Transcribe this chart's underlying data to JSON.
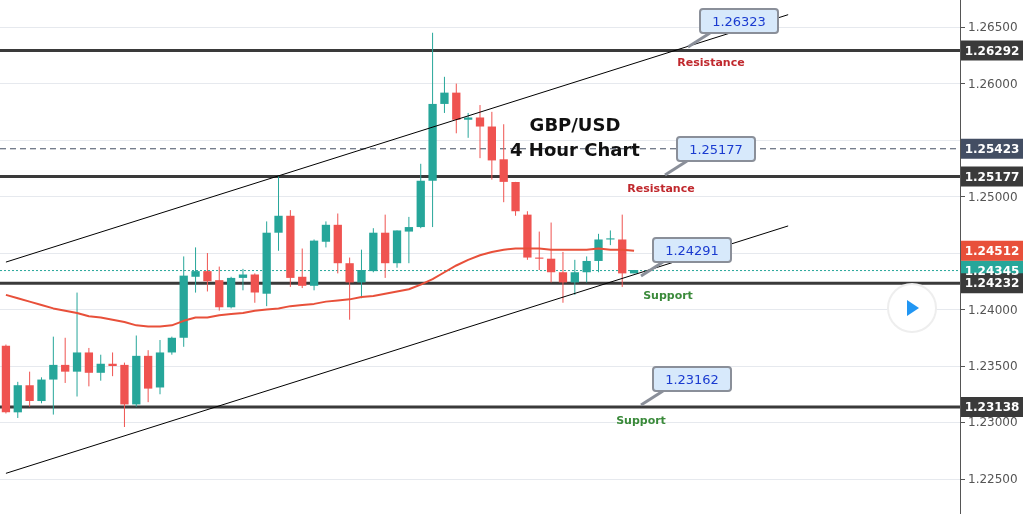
{
  "chart_data": {
    "type": "candlestick",
    "title": "GBP/USD",
    "subtitle": "4 Hour Chart",
    "categories": [
      null,
      null,
      null,
      null,
      null,
      null,
      null,
      null,
      null,
      null,
      null,
      null,
      null,
      null,
      null,
      null,
      null,
      null,
      null,
      null,
      null,
      null,
      null,
      null,
      null,
      null,
      null,
      null,
      null,
      null,
      null,
      null,
      null,
      null,
      null,
      null,
      null,
      null,
      null,
      null,
      null,
      null,
      null,
      null,
      null,
      null,
      null,
      null,
      null,
      null,
      null,
      null,
      null,
      null,
      null,
      null,
      null,
      null,
      null,
      null,
      null,
      null,
      null,
      null,
      null,
      null,
      null,
      null,
      null,
      null,
      null,
      null,
      null,
      null,
      null,
      null,
      null,
      null,
      null,
      null,
      null
    ],
    "ohlc": [
      [
        1.2368,
        1.2369,
        1.2308,
        1.2309
      ],
      [
        1.2309,
        1.2336,
        1.2304,
        1.2333
      ],
      [
        1.2333,
        1.2345,
        1.2314,
        1.2319
      ],
      [
        1.2319,
        1.234,
        1.2317,
        1.2338
      ],
      [
        1.2338,
        1.2376,
        1.2307,
        1.2351
      ],
      [
        1.2351,
        1.2375,
        1.2335,
        1.2345
      ],
      [
        1.2345,
        1.2415,
        1.2323,
        1.2362
      ],
      [
        1.2362,
        1.2366,
        1.2332,
        1.2344
      ],
      [
        1.2344,
        1.236,
        1.2337,
        1.2352
      ],
      [
        1.2352,
        1.2362,
        1.2341,
        1.235
      ],
      [
        1.2351,
        1.2353,
        1.2296,
        1.2316
      ],
      [
        1.2316,
        1.2377,
        1.2314,
        1.2359
      ],
      [
        1.2359,
        1.2364,
        1.2318,
        1.233
      ],
      [
        1.2331,
        1.2373,
        1.2325,
        1.2362
      ],
      [
        1.2362,
        1.2376,
        1.236,
        1.2375
      ],
      [
        1.2375,
        1.2447,
        1.2367,
        1.243
      ],
      [
        1.2429,
        1.2455,
        1.2415,
        1.2434
      ],
      [
        1.2434,
        1.245,
        1.2416,
        1.2425
      ],
      [
        1.2426,
        1.2438,
        1.2399,
        1.2402
      ],
      [
        1.2402,
        1.2429,
        1.2401,
        1.2428
      ],
      [
        1.2428,
        1.2436,
        1.2417,
        1.2431
      ],
      [
        1.2431,
        1.2432,
        1.2406,
        1.2415
      ],
      [
        1.2414,
        1.2478,
        1.2403,
        1.2468
      ],
      [
        1.2468,
        1.2518,
        1.2452,
        1.2483
      ],
      [
        1.2483,
        1.2488,
        1.242,
        1.2428
      ],
      [
        1.2429,
        1.2454,
        1.2419,
        1.2421
      ],
      [
        1.2421,
        1.2462,
        1.2417,
        1.2461
      ],
      [
        1.246,
        1.2478,
        1.2455,
        1.2475
      ],
      [
        1.2475,
        1.2485,
        1.2432,
        1.2441
      ],
      [
        1.2441,
        1.2446,
        1.2391,
        1.2424
      ],
      [
        1.2424,
        1.2453,
        1.241,
        1.2435
      ],
      [
        1.2434,
        1.2472,
        1.2433,
        1.2468
      ],
      [
        1.2468,
        1.2484,
        1.2428,
        1.2441
      ],
      [
        1.2441,
        1.247,
        1.2437,
        1.247
      ],
      [
        1.2469,
        1.2482,
        1.2441,
        1.2473
      ],
      [
        1.2473,
        1.2529,
        1.2472,
        1.2514
      ],
      [
        1.2514,
        1.2645,
        1.2473,
        1.2582
      ],
      [
        1.2582,
        1.2606,
        1.2574,
        1.2592
      ],
      [
        1.2592,
        1.26,
        1.2556,
        1.2568
      ],
      [
        1.2568,
        1.2574,
        1.2552,
        1.257
      ],
      [
        1.257,
        1.2581,
        1.2534,
        1.2562
      ],
      [
        1.2562,
        1.2575,
        1.2515,
        1.2532
      ],
      [
        1.2533,
        1.2564,
        1.2495,
        1.2513
      ],
      [
        1.2513,
        1.2513,
        1.2483,
        1.2487
      ],
      [
        1.2484,
        1.2487,
        1.2444,
        1.2446
      ],
      [
        1.2446,
        1.2469,
        1.2435,
        1.2445
      ],
      [
        1.2445,
        1.2477,
        1.2424,
        1.2433
      ],
      [
        1.2433,
        1.2451,
        1.2406,
        1.2424
      ],
      [
        1.2424,
        1.2444,
        1.2413,
        1.2433
      ],
      [
        1.2433,
        1.2447,
        1.2424,
        1.2443
      ],
      [
        1.2443,
        1.2467,
        1.2433,
        1.2462
      ],
      [
        1.2462,
        1.247,
        1.2457,
        1.2463
      ],
      [
        1.2462,
        1.2484,
        1.242,
        1.2432
      ],
      [
        1.2432,
        1.2435,
        1.2432,
        1.2435
      ],
      null,
      null,
      null,
      null,
      null,
      null,
      null,
      null,
      null,
      null,
      null,
      null,
      null,
      null,
      null,
      null,
      null,
      null,
      null,
      null,
      null,
      null,
      null,
      null,
      null,
      null,
      null
    ],
    "colors": [
      "#ef5350",
      "#26a69a",
      "#ef5350",
      "#26a69a",
      "#26a69a",
      "#ef5350",
      "#26a69a",
      "#ef5350",
      "#26a69a",
      "#ef5350",
      "#ef5350",
      "#26a69a",
      "#ef5350",
      "#26a69a",
      "#26a69a",
      "#26a69a",
      "#26a69a",
      "#ef5350",
      "#ef5350",
      "#26a69a",
      "#26a69a",
      "#ef5350",
      "#26a69a",
      "#26a69a",
      "#ef5350",
      "#ef5350",
      "#26a69a",
      "#26a69a",
      "#ef5350",
      "#ef5350",
      "#26a69a",
      "#26a69a",
      "#ef5350",
      "#26a69a",
      "#26a69a",
      "#26a69a",
      "#26a69a",
      "#26a69a",
      "#ef5350",
      "#26a69a",
      "#ef5350",
      "#ef5350",
      "#ef5350",
      "#ef5350",
      "#ef5350",
      "#ef5350",
      "#ef5350",
      "#ef5350",
      "#26a69a",
      "#26a69a",
      "#26a69a",
      "#26a69a",
      "#ef5350",
      "#26a69a",
      null,
      null,
      null,
      null,
      null,
      null,
      null,
      null,
      null,
      null,
      null,
      null,
      null,
      null,
      null,
      null,
      null,
      null,
      null,
      null,
      null,
      null,
      null,
      null,
      null,
      null,
      null
    ],
    "series": [
      {
        "type": "line",
        "color": "#e8503a",
        "values": [
          1.2413,
          1.241,
          1.2407,
          1.2404,
          1.2401,
          1.2399,
          1.2397,
          1.2394,
          1.2393,
          1.2391,
          1.2389,
          1.2386,
          1.2385,
          1.2385,
          1.2386,
          1.239,
          1.2393,
          1.2393,
          1.2395,
          1.2396,
          1.2397,
          1.2399,
          1.24,
          1.2401,
          1.2403,
          1.2404,
          1.2405,
          1.2407,
          1.2408,
          1.2409,
          1.2411,
          1.2412,
          1.2414,
          1.2416,
          1.2418,
          1.2422,
          1.2427,
          1.2433,
          1.2439,
          1.2444,
          1.2448,
          1.2451,
          1.2453,
          1.2454,
          1.2454,
          1.2454,
          1.2453,
          1.2453,
          1.2453,
          1.2453,
          1.2454,
          1.2453,
          1.2453,
          1.2452,
          null,
          null,
          null,
          null,
          null,
          null,
          null,
          null,
          null,
          null,
          null,
          null,
          null,
          null,
          null,
          null,
          null,
          null,
          null,
          null,
          null,
          null,
          null,
          null,
          null,
          null,
          null
        ]
      },
      {
        "type": "line",
        "color": "#000000",
        "values": [
          1.2442,
          null,
          null,
          null,
          null,
          null,
          null,
          null,
          null,
          null,
          null,
          null,
          null,
          null,
          null,
          null,
          null,
          null,
          null,
          null,
          null,
          null,
          null,
          null,
          null,
          null,
          null,
          null,
          null,
          null,
          null,
          null,
          null,
          null,
          null,
          null,
          null,
          null,
          null,
          null,
          null,
          null,
          null,
          null,
          null,
          null,
          null,
          null,
          null,
          null,
          null,
          null,
          null,
          null,
          null,
          null,
          null,
          null,
          null,
          null,
          null,
          null,
          null,
          null,
          null,
          null,
          1.2661,
          null,
          null,
          null,
          null,
          null,
          null,
          null,
          null,
          null,
          null,
          null,
          null,
          null,
          null
        ]
      },
      {
        "type": "line",
        "color": "#000000",
        "values": [
          1.2255,
          null,
          null,
          null,
          null,
          null,
          null,
          null,
          null,
          null,
          null,
          null,
          null,
          null,
          null,
          null,
          null,
          null,
          null,
          null,
          null,
          null,
          null,
          null,
          null,
          null,
          null,
          null,
          null,
          null,
          null,
          null,
          null,
          null,
          null,
          null,
          null,
          null,
          null,
          null,
          null,
          null,
          null,
          null,
          null,
          null,
          null,
          null,
          null,
          null,
          null,
          null,
          null,
          null,
          null,
          null,
          null,
          null,
          null,
          null,
          null,
          null,
          null,
          null,
          null,
          null,
          1.2474,
          null,
          null,
          null,
          null,
          null,
          null,
          null,
          null,
          null,
          null,
          null,
          null,
          null,
          null
        ]
      }
    ],
    "ylim": [
      1.2219,
      1.2674
    ],
    "yticks": [
      {
        "value": 1.225,
        "label": "1.22500"
      },
      {
        "value": 1.23,
        "label": "1.23000"
      },
      {
        "value": 1.235,
        "label": "1.23500"
      },
      {
        "value": 1.24,
        "label": "1.24000"
      },
      {
        "value": 1.245,
        "label": null
      },
      {
        "value": 1.25,
        "label": "1.25000"
      },
      {
        "value": 1.255,
        "label": null
      },
      {
        "value": 1.26,
        "label": "1.26000"
      },
      {
        "value": 1.265,
        "label": "1.26500"
      }
    ],
    "ref_lines": [
      {
        "axis": "y",
        "value": 1.26292,
        "label": "Resistance",
        "color": "#3a3a3a",
        "line_style": "solid"
      },
      {
        "axis": "y",
        "value": 1.25423,
        "label": null,
        "color": "#434e63",
        "line_style": "dashed"
      },
      {
        "axis": "y",
        "value": 1.25177,
        "label": "Resistance",
        "color": "#3a3a3a",
        "line_style": "solid"
      },
      {
        "axis": "y",
        "value": 1.24345,
        "label": null,
        "color": "#26a69a",
        "line_style": "dotted"
      },
      {
        "axis": "y",
        "value": 1.24232,
        "label": "Support",
        "color": "#3a3a3a",
        "line_style": "solid"
      },
      {
        "axis": "y",
        "value": 1.23138,
        "label": "Support",
        "color": "#3a3a3a",
        "line_style": "solid"
      }
    ],
    "annotations": [
      "1.26323",
      "1.25177",
      "1.24291",
      "1.23162",
      "1.24512",
      "1.26292",
      "1.25423",
      "1.25177",
      "1.24345",
      "1.24232",
      "1.23138"
    ],
    "grid": "y",
    "tick_labels": "y",
    "marker": "none"
  }
}
